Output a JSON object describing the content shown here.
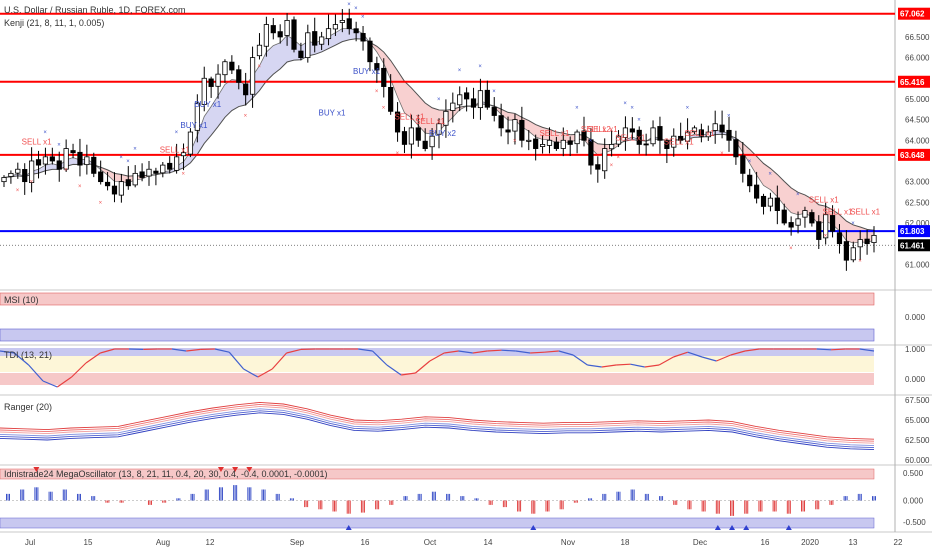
{
  "header": {
    "title": "U.S. Dollar / Russian Ruble, 1D, FOREX.com",
    "indicator": "Kenji (21, 8, 11, 1, 0.005)"
  },
  "colors": {
    "up_candle": "#ffffff",
    "down_candle": "#000000",
    "resistance": "#ff0000",
    "support": "#0000ff",
    "sell_text": "#f05050",
    "buy_text": "#3a50c8",
    "ribbon_bear": "#f5c0c0",
    "ribbon_bull": "#c8c8ee",
    "tdi_red": "#e84040",
    "tdi_blue": "#4060d0"
  },
  "chart_data": [
    {
      "type": "candlestick",
      "panel": "price",
      "ylim": [
        60.5,
        67.2
      ],
      "y_ticks": [
        "67.062",
        "66.500",
        "66.000",
        "65.416",
        "65.000",
        "64.500",
        "64.000",
        "63.648",
        "63.000",
        "62.500",
        "62.000",
        "61.803",
        "61.461",
        "61.000"
      ],
      "x_tick_labels": [
        "Jul",
        "15",
        "Aug",
        "12",
        "Sep",
        "16",
        "Oct",
        "14",
        "Nov",
        "18",
        "Dec",
        "16",
        "2020",
        "13",
        "22"
      ],
      "series": [
        {
          "name": "close",
          "values": [
            63.1,
            63.2,
            63.3,
            63.0,
            63.5,
            63.4,
            63.6,
            63.5,
            63.3,
            63.8,
            63.7,
            63.4,
            63.6,
            63.2,
            63.0,
            62.9,
            62.7,
            63.0,
            62.9,
            63.2,
            63.1,
            63.3,
            63.2,
            63.4,
            63.3,
            63.6,
            63.7,
            64.2,
            64.9,
            65.5,
            65.3,
            65.6,
            65.9,
            65.7,
            65.4,
            65.1,
            66.0,
            66.3,
            66.8,
            66.6,
            66.5,
            66.9,
            66.2,
            66.0,
            66.6,
            66.3,
            66.5,
            66.7,
            66.8,
            66.9,
            66.7,
            66.6,
            66.4,
            65.9,
            65.7,
            65.3,
            64.7,
            64.2,
            63.9,
            64.3,
            64.0,
            63.8,
            64.1,
            64.4,
            64.7,
            64.9,
            65.1,
            65.0,
            64.8,
            65.2,
            64.8,
            64.6,
            64.3,
            64.2,
            64.5,
            64.0,
            64.0,
            63.8,
            63.9,
            64.0,
            63.8,
            64.0,
            63.9,
            64.2,
            64.0,
            63.4,
            63.3,
            63.8,
            63.9,
            64.1,
            64.3,
            64.2,
            63.9,
            63.9,
            64.3,
            64.0,
            63.8,
            64.1,
            64.0,
            64.2,
            64.3,
            64.1,
            64.2,
            64.4,
            64.2,
            64.0,
            63.6,
            63.2,
            62.9,
            62.6,
            62.4,
            62.6,
            62.3,
            62.0,
            61.9,
            62.1,
            62.3,
            62.0,
            61.6,
            62.2,
            61.8,
            61.5,
            61.1,
            61.4,
            61.6,
            61.5,
            61.7
          ]
        }
      ],
      "annotations": [
        "SELL x1",
        "SELL x1",
        "BUY x1",
        "BUY x1",
        "BUY x1",
        "BUY x1",
        "SELL x1",
        "SELL x1",
        "BUY x2",
        "SELL x1",
        "SELL x2",
        "SELL x1",
        "SELL x1",
        "SELL x1",
        "SELL x1",
        "SELL x1",
        "SELL x1",
        "SELL x1"
      ],
      "horizontal_lines": [
        67.062,
        65.416,
        63.648,
        61.803
      ],
      "last_price": 61.461
    },
    {
      "type": "band",
      "panel": "msi",
      "title": "MSI (10)",
      "y_ticks": [
        "0.000"
      ]
    },
    {
      "type": "line",
      "panel": "tdi",
      "title": "TDI (13, 21)",
      "y_ticks": [
        "1.000",
        "0.000"
      ],
      "series": [
        {
          "name": "",
          "values": [
            0.95,
            0.9,
            0.6,
            0.2,
            0.05,
            0.3,
            0.65,
            0.9,
            1.0,
            1.0,
            0.99,
            1.0,
            1.0,
            0.95,
            0.99,
            1.0,
            0.92,
            0.5,
            0.3,
            0.5,
            0.9,
            0.99,
            1.0,
            1.0,
            1.0,
            1.0,
            0.95,
            0.6,
            0.35,
            0.4,
            0.7,
            0.9,
            0.95,
            0.9,
            0.95,
            0.97,
            0.95,
            0.9,
            0.92,
            0.95,
            0.85,
            0.6,
            0.55,
            0.6,
            0.62,
            0.55,
            0.6,
            0.8,
            0.92,
            0.8,
            0.7,
            0.85,
            0.95,
            1.0,
            1.0,
            1.0,
            1.0,
            1.0,
            0.98,
            1.0,
            1.0,
            0.95
          ]
        }
      ]
    },
    {
      "type": "line",
      "panel": "ranger",
      "title": "Ranger (20)",
      "y_ticks": [
        "67.500",
        "65.000",
        "62.500",
        "60.000"
      ],
      "series": [
        {
          "name": "",
          "values": [
            63.4,
            63.3,
            63.2,
            63.4,
            63.5,
            63.6,
            64.2,
            64.8,
            65.4,
            65.9,
            66.3,
            66.6,
            66.4,
            65.8,
            65.0,
            64.4,
            64.3,
            64.5,
            64.8,
            64.7,
            64.4,
            64.2,
            64.1,
            64.0,
            64.1,
            64.1,
            64.2,
            64.3,
            64.2,
            64.3,
            64.4,
            64.2,
            63.6,
            63.1,
            62.7,
            62.3,
            62.1,
            62.0
          ]
        }
      ]
    },
    {
      "type": "bar",
      "panel": "oscillator",
      "title": "Idnistrade24 MegaOscillator (13, 8, 21, 11, 0.4, 20, 30, 0.4, -0.4, 0.0001, -0.0001)",
      "y_ticks": [
        "0.500",
        "0.000",
        "-0.500"
      ],
      "values": [
        0.3,
        0.5,
        0.6,
        0.4,
        0.5,
        0.3,
        0.2,
        -0.1,
        -0.1,
        0.0,
        -0.2,
        -0.1,
        0.1,
        0.3,
        0.5,
        0.6,
        0.7,
        0.6,
        0.5,
        0.3,
        0.1,
        -0.3,
        -0.4,
        -0.5,
        -0.6,
        -0.55,
        -0.4,
        -0.2,
        0.2,
        0.3,
        0.4,
        0.3,
        0.2,
        0.1,
        -0.2,
        -0.3,
        -0.5,
        -0.6,
        -0.5,
        -0.4,
        -0.1,
        0.1,
        0.3,
        0.4,
        0.5,
        0.3,
        0.2,
        -0.2,
        -0.4,
        -0.5,
        -0.6,
        -0.7,
        -0.6,
        -0.5,
        -0.5,
        -0.6,
        -0.5,
        -0.4,
        -0.2,
        0.2,
        0.3,
        0.2
      ]
    }
  ]
}
